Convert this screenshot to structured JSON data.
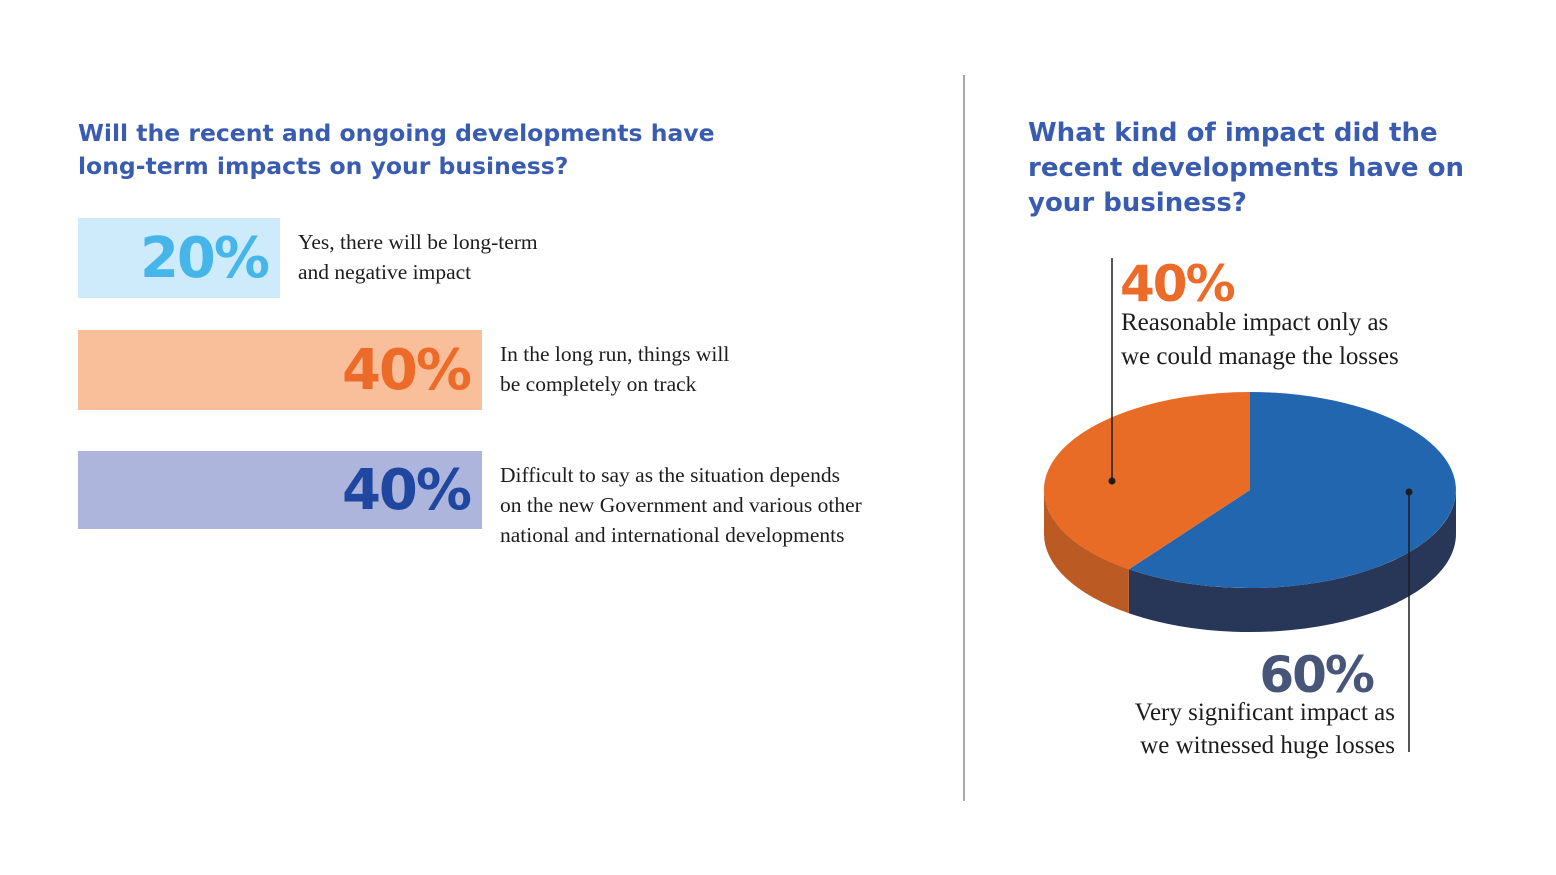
{
  "left": {
    "title": "Will the recent and ongoing developments have long-term impacts on your business?",
    "items": [
      {
        "percent": "20%",
        "label": "Yes, there will be long-term\nand negative impact",
        "value": 20,
        "bar_color": "#cdebfa",
        "text_color": "#46b6ea"
      },
      {
        "percent": "40%",
        "label": "In the long run, things will\nbe completely on track",
        "value": 40,
        "bar_color": "#f9bf9b",
        "text_color": "#ec6b29"
      },
      {
        "percent": "40%",
        "label": "Difficult to say as the situation depends\non the new Government and various other\nnational and international developments",
        "value": 40,
        "bar_color": "#adb5dc",
        "text_color": "#1f47a0"
      }
    ]
  },
  "right": {
    "title": "What kind of impact did the recent developments have on your business?",
    "slices": [
      {
        "percent": "40%",
        "label_lines": [
          "Reasonable impact only as",
          "we could manage the losses"
        ],
        "value": 40,
        "color": "#e86c26",
        "side_color": "#bc5a24",
        "text_color": "#ec6b29"
      },
      {
        "percent": "60%",
        "label_lines": [
          "Very significant impact as",
          "we witnessed huge losses"
        ],
        "value": 60,
        "color": "#2366b0",
        "side_color": "#283658",
        "text_color": "#475579"
      }
    ]
  },
  "chart_data": [
    {
      "type": "bar",
      "title": "Will the recent and ongoing developments have long-term impacts on your business?",
      "categories": [
        "Yes, there will be long-term and negative impact",
        "In the long run, things will be completely on track",
        "Difficult to say as the situation depends on the new Government and various other national and international developments"
      ],
      "values": [
        20,
        40,
        40
      ],
      "unit": "%"
    },
    {
      "type": "pie",
      "title": "What kind of impact did the recent developments have on your business?",
      "categories": [
        "Reasonable impact only as we could manage the losses",
        "Very significant impact as we witnessed huge losses"
      ],
      "values": [
        40,
        60
      ],
      "unit": "%"
    }
  ]
}
